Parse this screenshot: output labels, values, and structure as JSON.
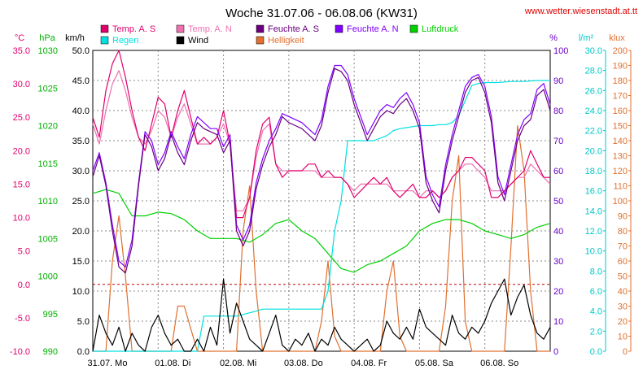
{
  "chart_data": {
    "type": "line",
    "title": "Woche 31.07.06 - 06.08.06 (KW31)",
    "site": "www.wetter.wiesenstadt.at.tt",
    "x_labels": [
      "31.07.  Mo",
      "01.08.  Di",
      "02.08.  Mi",
      "03.08.  Do",
      "04.08.  Fr",
      "05.08.  Sa",
      "06.08.  So"
    ],
    "axes": {
      "temp": {
        "unit": "°C",
        "ticks": [
          "35.0",
          "30.0",
          "25.0",
          "20.0",
          "15.0",
          "10.0",
          "5.0",
          "0.0",
          "-5.0",
          "-10.0"
        ],
        "ylim": [
          -10,
          35
        ],
        "color": "#e0006e"
      },
      "pressure": {
        "unit": "hPa",
        "ticks": [
          "1030",
          "1025",
          "1020",
          "1015",
          "1010",
          "1005",
          "1000",
          "995",
          "990"
        ],
        "ylim": [
          990,
          1030
        ],
        "color": "#00b000"
      },
      "wind": {
        "unit": "km/h",
        "ticks": [
          "50.0",
          "45.0",
          "40.0",
          "35.0",
          "30.0",
          "25.0",
          "20.0",
          "15.0",
          "10.0",
          "5.0",
          "0.0"
        ],
        "ylim": [
          0,
          50
        ],
        "color": "#000000"
      },
      "humidity": {
        "unit": "%",
        "ticks": [
          "100",
          "90",
          "80",
          "70",
          "60",
          "50",
          "40",
          "30",
          "20",
          "10",
          "0"
        ],
        "ylim": [
          0,
          100
        ],
        "color": "#6a00c8"
      },
      "rain": {
        "unit": "l/m²",
        "ticks": [
          "30.0",
          "28.0",
          "26.0",
          "24.0",
          "22.0",
          "20.0",
          "18.0",
          "16.0",
          "14.0",
          "12.0",
          "10.0",
          "8.0",
          "6.0",
          "4.0",
          "2.0",
          "0.0"
        ],
        "ylim": [
          0,
          30
        ],
        "color": "#00c8c8"
      },
      "light": {
        "unit": "klux",
        "ticks": [
          "200",
          "190",
          "180",
          "170",
          "160",
          "150",
          "140",
          "130",
          "120",
          "110",
          "100",
          "90",
          "80",
          "70",
          "60",
          "50",
          "40",
          "30",
          "20",
          "10",
          "0"
        ],
        "ylim": [
          0,
          200
        ],
        "color": "#e07030"
      }
    },
    "legend": [
      {
        "name": "Temp. A. S",
        "color": "#e0006e"
      },
      {
        "name": "Temp. A. N",
        "color": "#f070b0"
      },
      {
        "name": "Feuchte A. S",
        "color": "#6a0080"
      },
      {
        "name": "Feuchte A. N",
        "color": "#8000ff"
      },
      {
        "name": "Luftdruck",
        "color": "#00d000"
      },
      {
        "name": "Regen",
        "color": "#00e0e0"
      },
      {
        "name": "Wind",
        "color": "#000000"
      },
      {
        "name": "Helligkeit",
        "color": "#e07030"
      }
    ],
    "series": [
      {
        "name": "Temp. A. S",
        "axis": "temp",
        "color": "#e0006e",
        "x": [
          0,
          0.1,
          0.2,
          0.3,
          0.4,
          0.5,
          0.6,
          0.7,
          0.8,
          0.9,
          1,
          1.1,
          1.2,
          1.3,
          1.4,
          1.5,
          1.6,
          1.7,
          1.8,
          1.9,
          2,
          2.1,
          2.2,
          2.3,
          2.4,
          2.5,
          2.6,
          2.7,
          2.8,
          2.9,
          3,
          3.1,
          3.2,
          3.3,
          3.4,
          3.5,
          3.6,
          3.7,
          3.8,
          3.9,
          4,
          4.1,
          4.2,
          4.3,
          4.4,
          4.5,
          4.6,
          4.7,
          4.8,
          4.9,
          5,
          5.1,
          5.2,
          5.3,
          5.4,
          5.5,
          5.6,
          5.7,
          5.8,
          5.9,
          6,
          6.1,
          6.2,
          6.3,
          6.4,
          6.5,
          6.6,
          6.7,
          6.8,
          6.9,
          7
        ],
        "y": [
          25,
          22,
          29,
          33,
          35,
          31,
          26,
          22,
          20,
          24,
          28,
          27,
          22,
          26,
          29,
          25,
          21,
          22,
          21,
          22,
          26,
          21,
          10,
          10,
          13,
          20,
          24,
          25,
          18,
          16,
          17,
          17,
          17,
          18,
          18,
          16,
          17,
          16,
          16,
          15,
          13,
          14,
          15,
          16,
          15,
          16,
          14,
          13,
          14,
          15,
          13,
          13,
          14,
          13,
          14,
          16,
          17,
          19,
          19,
          18,
          17,
          13,
          13,
          14,
          15,
          16,
          17,
          20,
          18,
          16,
          16
        ]
      },
      {
        "name": "Temp. A. N",
        "axis": "temp",
        "color": "#f070b0",
        "x": [
          0,
          0.1,
          0.2,
          0.3,
          0.4,
          0.5,
          0.6,
          0.7,
          0.8,
          0.9,
          1,
          1.1,
          1.2,
          1.3,
          1.4,
          1.5,
          1.6,
          1.7,
          1.8,
          1.9,
          2,
          2.1,
          2.2,
          2.3,
          2.4,
          2.5,
          2.6,
          2.7,
          2.8,
          2.9,
          3,
          3.1,
          3.2,
          3.3,
          3.4,
          3.5,
          3.6,
          3.7,
          3.8,
          3.9,
          4,
          4.1,
          4.2,
          4.3,
          4.4,
          4.5,
          4.6,
          4.7,
          4.8,
          4.9,
          5,
          5.1,
          5.2,
          5.3,
          5.4,
          5.5,
          5.6,
          5.7,
          5.8,
          5.9,
          6,
          6.1,
          6.2,
          6.3,
          6.4,
          6.5,
          6.6,
          6.7,
          6.8,
          6.9,
          7
        ],
        "y": [
          24,
          21,
          26,
          30,
          32,
          29,
          25,
          22,
          21,
          23,
          26,
          25,
          22,
          25,
          27,
          24,
          21,
          21,
          21,
          22,
          24,
          21,
          11,
          11,
          13,
          19,
          23,
          24,
          18,
          17,
          17,
          17,
          17,
          17,
          17,
          16,
          16,
          16,
          16,
          15,
          14,
          15,
          15,
          15,
          15,
          15,
          14,
          14,
          14,
          14,
          13,
          14,
          14,
          13,
          14,
          16,
          17,
          18,
          18,
          17,
          16,
          14,
          14,
          14,
          15,
          16,
          16,
          18,
          17,
          16,
          15
        ]
      },
      {
        "name": "Feuchte A. S",
        "axis": "humidity",
        "color": "#6a0080",
        "x": [
          0,
          0.1,
          0.2,
          0.3,
          0.4,
          0.5,
          0.6,
          0.7,
          0.8,
          0.9,
          1,
          1.1,
          1.2,
          1.3,
          1.4,
          1.5,
          1.6,
          1.7,
          1.8,
          1.9,
          2,
          2.1,
          2.2,
          2.3,
          2.4,
          2.5,
          2.6,
          2.7,
          2.8,
          2.9,
          3,
          3.1,
          3.2,
          3.3,
          3.4,
          3.5,
          3.6,
          3.7,
          3.8,
          3.9,
          4,
          4.1,
          4.2,
          4.3,
          4.4,
          4.5,
          4.6,
          4.7,
          4.8,
          4.9,
          5,
          5.1,
          5.2,
          5.3,
          5.4,
          5.5,
          5.6,
          5.7,
          5.8,
          5.9,
          6,
          6.1,
          6.2,
          6.3,
          6.4,
          6.5,
          6.6,
          6.7,
          6.8,
          6.9,
          7
        ],
        "y": [
          58,
          65,
          55,
          40,
          28,
          26,
          35,
          55,
          72,
          68,
          60,
          64,
          72,
          66,
          62,
          70,
          76,
          74,
          73,
          72,
          66,
          70,
          40,
          35,
          40,
          54,
          62,
          68,
          72,
          78,
          76,
          75,
          74,
          72,
          70,
          75,
          86,
          94,
          93,
          90,
          82,
          76,
          70,
          74,
          78,
          80,
          79,
          82,
          84,
          80,
          74,
          56,
          50,
          46,
          60,
          70,
          78,
          86,
          90,
          91,
          86,
          76,
          56,
          50,
          60,
          70,
          75,
          77,
          85,
          87,
          80
        ]
      },
      {
        "name": "Feuchte A. N",
        "axis": "humidity",
        "color": "#8000ff",
        "x": [
          0,
          0.1,
          0.2,
          0.3,
          0.4,
          0.5,
          0.6,
          0.7,
          0.8,
          0.9,
          1,
          1.1,
          1.2,
          1.3,
          1.4,
          1.5,
          1.6,
          1.7,
          1.8,
          1.9,
          2,
          2.1,
          2.2,
          2.3,
          2.4,
          2.5,
          2.6,
          2.7,
          2.8,
          2.9,
          3,
          3.1,
          3.2,
          3.3,
          3.4,
          3.5,
          3.6,
          3.7,
          3.8,
          3.9,
          4,
          4.1,
          4.2,
          4.3,
          4.4,
          4.5,
          4.6,
          4.7,
          4.8,
          4.9,
          5,
          5.1,
          5.2,
          5.3,
          5.4,
          5.5,
          5.6,
          5.7,
          5.8,
          5.9,
          6,
          6.1,
          6.2,
          6.3,
          6.4,
          6.5,
          6.6,
          6.7,
          6.8,
          6.9,
          7
        ],
        "y": [
          60,
          66,
          56,
          42,
          30,
          28,
          37,
          56,
          73,
          70,
          62,
          66,
          73,
          68,
          64,
          72,
          78,
          76,
          74,
          74,
          68,
          72,
          42,
          37,
          42,
          56,
          64,
          70,
          74,
          79,
          78,
          77,
          76,
          74,
          72,
          77,
          88,
          95,
          95,
          92,
          84,
          78,
          72,
          76,
          80,
          82,
          81,
          84,
          86,
          82,
          76,
          58,
          52,
          48,
          62,
          72,
          80,
          88,
          91,
          92,
          88,
          78,
          58,
          52,
          62,
          72,
          77,
          79,
          87,
          89,
          82
        ]
      },
      {
        "name": "Luftdruck",
        "axis": "pressure",
        "color": "#00d000",
        "x": [
          0,
          0.2,
          0.4,
          0.6,
          0.8,
          1,
          1.2,
          1.4,
          1.6,
          1.8,
          2,
          2.2,
          2.4,
          2.6,
          2.8,
          3,
          3.2,
          3.4,
          3.6,
          3.8,
          4,
          4.2,
          4.4,
          4.6,
          4.8,
          5,
          5.2,
          5.4,
          5.6,
          5.8,
          6,
          6.2,
          6.4,
          6.6,
          6.8,
          7
        ],
        "y": [
          1011,
          1011.5,
          1011,
          1008,
          1008,
          1008.5,
          1008.3,
          1007.5,
          1006,
          1005,
          1005,
          1005,
          1004.5,
          1005.5,
          1007,
          1007.5,
          1006,
          1005,
          1003,
          1001,
          1000.5,
          1001.5,
          1002,
          1003,
          1004,
          1006,
          1007,
          1007.5,
          1007.5,
          1007,
          1006,
          1005.5,
          1005,
          1005.5,
          1006.5,
          1007
        ]
      },
      {
        "name": "Regen",
        "axis": "rain",
        "color": "#00e0e0",
        "x": [
          0,
          1.6,
          1.7,
          2.2,
          2.5,
          2.6,
          3.4,
          3.5,
          3.6,
          3.7,
          3.8,
          3.9,
          4,
          4.1,
          4.2,
          4.3,
          4.5,
          4.6,
          4.7,
          4.8,
          4.9,
          5,
          5.1,
          5.2,
          5.3,
          5.4,
          5.5,
          5.6,
          5.7,
          5.8,
          5.9,
          6,
          6.2,
          6.4,
          6.6,
          6.8,
          7
        ],
        "y": [
          0,
          0,
          3.5,
          3.5,
          4,
          4.2,
          4.2,
          4.2,
          6,
          12,
          15,
          21,
          21,
          21,
          21,
          21,
          21.5,
          22,
          22.2,
          22.3,
          22.4,
          22.5,
          22.5,
          22.5,
          22.6,
          22.6,
          22.8,
          23.5,
          25,
          26.5,
          26.7,
          26.8,
          26.8,
          26.9,
          26.9,
          27,
          27
        ]
      },
      {
        "name": "Wind",
        "axis": "wind",
        "color": "#000000",
        "x": [
          0,
          0.1,
          0.2,
          0.3,
          0.4,
          0.5,
          0.6,
          0.7,
          0.8,
          0.9,
          1,
          1.1,
          1.2,
          1.3,
          1.4,
          1.5,
          1.6,
          1.7,
          1.8,
          1.9,
          2,
          2.1,
          2.2,
          2.3,
          2.4,
          2.5,
          2.6,
          2.7,
          2.8,
          2.9,
          3,
          3.1,
          3.2,
          3.3,
          3.4,
          3.5,
          3.6,
          3.7,
          3.8,
          3.9,
          4,
          4.1,
          4.2,
          4.3,
          4.4,
          4.5,
          4.6,
          4.7,
          4.8,
          4.9,
          5,
          5.1,
          5.2,
          5.3,
          5.4,
          5.5,
          5.6,
          5.7,
          5.8,
          5.9,
          6,
          6.1,
          6.2,
          6.3,
          6.4,
          6.5,
          6.6,
          6.7,
          6.8,
          6.9,
          7
        ],
        "y": [
          0,
          6,
          3,
          1,
          4,
          0,
          3,
          1,
          0,
          4,
          6,
          3,
          1,
          2,
          0,
          0,
          2,
          0,
          4,
          1,
          12,
          3,
          8,
          5,
          2,
          1,
          0,
          3,
          6,
          1,
          0,
          2,
          1,
          3,
          0,
          2,
          1,
          4,
          2,
          1,
          0,
          1,
          2,
          0,
          1,
          5,
          3,
          2,
          4,
          2,
          7,
          4,
          3,
          2,
          1,
          6,
          3,
          2,
          4,
          3,
          5,
          8,
          10,
          12,
          6,
          9,
          11,
          6,
          3,
          2,
          4
        ]
      },
      {
        "name": "Helligkeit",
        "axis": "light",
        "color": "#e07030",
        "x": [
          0,
          0.1,
          0.2,
          0.3,
          0.4,
          0.5,
          0.6,
          0.7,
          0.8,
          0.9,
          1,
          1.1,
          1.2,
          1.3,
          1.4,
          1.5,
          1.6,
          1.7,
          1.8,
          1.9,
          2,
          2.1,
          2.2,
          2.3,
          2.4,
          2.5,
          2.6,
          2.7,
          2.8,
          2.9,
          3,
          3.1,
          3.2,
          3.3,
          3.4,
          3.5,
          3.6,
          3.7,
          3.8,
          3.9,
          4,
          4.1,
          4.2,
          4.3,
          4.4,
          4.5,
          4.6,
          4.7,
          4.8,
          4.9,
          5,
          5.1,
          5.2,
          5.3,
          5.4,
          5.5,
          5.6,
          5.7,
          5.8,
          5.9,
          6,
          6.1,
          6.2,
          6.3,
          6.4,
          6.5,
          6.6,
          6.7,
          6.8,
          6.9,
          7
        ],
        "y": [
          0,
          0,
          0,
          60,
          90,
          50,
          0,
          0,
          0,
          0,
          0,
          0,
          0,
          30,
          30,
          15,
          0,
          0,
          0,
          0,
          0,
          0,
          0,
          80,
          110,
          40,
          0,
          0,
          0,
          0,
          0,
          0,
          0,
          0,
          0,
          20,
          60,
          10,
          0,
          0,
          0,
          0,
          0,
          0,
          0,
          40,
          60,
          10,
          0,
          0,
          0,
          0,
          0,
          0,
          30,
          100,
          130,
          20,
          0,
          0,
          0,
          0,
          0,
          0,
          70,
          150,
          120,
          40,
          0,
          0,
          0
        ]
      }
    ]
  }
}
